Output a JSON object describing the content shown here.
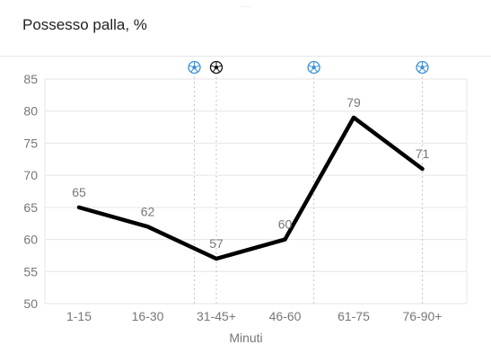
{
  "chart_data": {
    "type": "line",
    "title": "Possesso palla, %",
    "xlabel": "Minuti",
    "ylabel": "",
    "categories": [
      "1-15",
      "16-30",
      "31-45+",
      "46-60",
      "61-75",
      "76-90+"
    ],
    "series": [
      {
        "values": [
          65,
          62,
          57,
          60,
          79,
          71
        ],
        "color": "#000000"
      }
    ],
    "ylim": [
      50,
      85
    ],
    "yticks": [
      50,
      55,
      60,
      65,
      70,
      75,
      80,
      85
    ],
    "grid": true,
    "legend": "none",
    "event_markers": [
      {
        "position": 1.68,
        "icon": "soccer-ball-blue-icon",
        "color": "#3a8fd8"
      },
      {
        "position": 2.0,
        "icon": "soccer-ball-black-icon",
        "color": "#111111"
      },
      {
        "position": 3.42,
        "icon": "soccer-ball-blue-icon",
        "color": "#3a8fd8"
      },
      {
        "position": 5.0,
        "icon": "soccer-ball-blue-icon",
        "color": "#3a8fd8"
      }
    ]
  }
}
